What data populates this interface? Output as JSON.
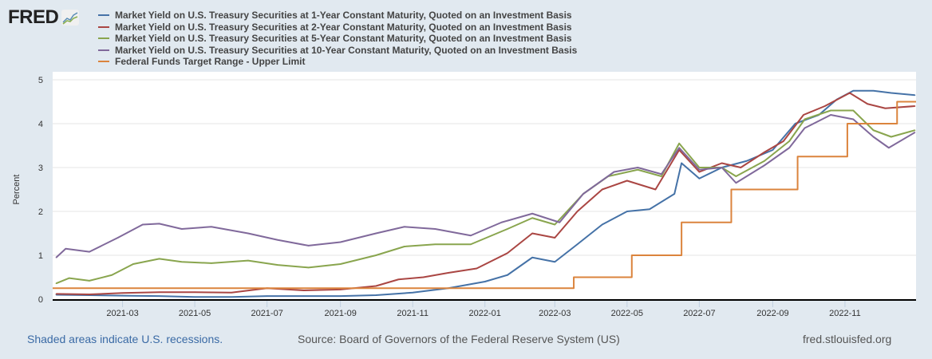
{
  "logo": {
    "text": "FRED"
  },
  "footer": {
    "recession_note": "Shaded areas indicate U.S. recessions.",
    "source": "Source: Board of Governors of the Federal Reserve System (US)",
    "site": "fred.stlouisfed.org"
  },
  "chart_data": {
    "type": "line",
    "title": "",
    "xlabel": "",
    "ylabel": "Percent",
    "ylim": [
      0,
      5
    ],
    "xlim": [
      "2021-01-01",
      "2022-12-31"
    ],
    "yticks": [
      "0",
      "1",
      "2",
      "3",
      "4",
      "5"
    ],
    "xticks": [
      "2021-03",
      "2021-05",
      "2021-07",
      "2021-09",
      "2021-11",
      "2022-01",
      "2022-03",
      "2022-05",
      "2022-07",
      "2022-09",
      "2022-11"
    ],
    "grid": true,
    "legend_position": "top",
    "series": [
      {
        "name": "Market Yield on U.S. Treasury Securities at 1-Year Constant Maturity, Quoted on an Investment Basis",
        "color": "#4572a7",
        "points": [
          [
            "2021-01-04",
            0.1
          ],
          [
            "2021-02-01",
            0.09
          ],
          [
            "2021-03-01",
            0.08
          ],
          [
            "2021-04-01",
            0.07
          ],
          [
            "2021-05-01",
            0.05
          ],
          [
            "2021-06-01",
            0.05
          ],
          [
            "2021-07-01",
            0.07
          ],
          [
            "2021-08-01",
            0.07
          ],
          [
            "2021-09-01",
            0.07
          ],
          [
            "2021-10-01",
            0.09
          ],
          [
            "2021-11-01",
            0.15
          ],
          [
            "2021-12-01",
            0.25
          ],
          [
            "2022-01-01",
            0.4
          ],
          [
            "2022-01-20",
            0.55
          ],
          [
            "2022-02-10",
            0.95
          ],
          [
            "2022-03-01",
            0.85
          ],
          [
            "2022-03-20",
            1.25
          ],
          [
            "2022-04-10",
            1.7
          ],
          [
            "2022-05-01",
            2.0
          ],
          [
            "2022-05-20",
            2.05
          ],
          [
            "2022-06-10",
            2.4
          ],
          [
            "2022-06-16",
            3.1
          ],
          [
            "2022-07-01",
            2.75
          ],
          [
            "2022-07-20",
            3.0
          ],
          [
            "2022-08-10",
            3.15
          ],
          [
            "2022-09-01",
            3.4
          ],
          [
            "2022-09-20",
            4.0
          ],
          [
            "2022-10-10",
            4.2
          ],
          [
            "2022-10-25",
            4.55
          ],
          [
            "2022-11-08",
            4.75
          ],
          [
            "2022-11-25",
            4.75
          ],
          [
            "2022-12-10",
            4.7
          ],
          [
            "2022-12-30",
            4.65
          ]
        ]
      },
      {
        "name": "Market Yield on U.S. Treasury Securities at 2-Year Constant Maturity, Quoted on an Investment Basis",
        "color": "#aa4643",
        "points": [
          [
            "2021-01-04",
            0.12
          ],
          [
            "2021-02-01",
            0.11
          ],
          [
            "2021-03-01",
            0.14
          ],
          [
            "2021-04-01",
            0.16
          ],
          [
            "2021-05-01",
            0.16
          ],
          [
            "2021-06-01",
            0.15
          ],
          [
            "2021-07-01",
            0.25
          ],
          [
            "2021-08-01",
            0.2
          ],
          [
            "2021-09-01",
            0.22
          ],
          [
            "2021-10-01",
            0.3
          ],
          [
            "2021-10-20",
            0.45
          ],
          [
            "2021-11-10",
            0.5
          ],
          [
            "2021-12-01",
            0.6
          ],
          [
            "2021-12-25",
            0.7
          ],
          [
            "2022-01-20",
            1.05
          ],
          [
            "2022-02-10",
            1.5
          ],
          [
            "2022-03-01",
            1.4
          ],
          [
            "2022-03-20",
            2.0
          ],
          [
            "2022-04-10",
            2.5
          ],
          [
            "2022-05-01",
            2.7
          ],
          [
            "2022-05-25",
            2.5
          ],
          [
            "2022-06-14",
            3.4
          ],
          [
            "2022-07-01",
            2.9
          ],
          [
            "2022-07-20",
            3.1
          ],
          [
            "2022-08-05",
            3.0
          ],
          [
            "2022-08-25",
            3.35
          ],
          [
            "2022-09-10",
            3.6
          ],
          [
            "2022-09-27",
            4.2
          ],
          [
            "2022-10-15",
            4.4
          ],
          [
            "2022-11-05",
            4.7
          ],
          [
            "2022-11-20",
            4.45
          ],
          [
            "2022-12-05",
            4.35
          ],
          [
            "2022-12-30",
            4.4
          ]
        ]
      },
      {
        "name": "Market Yield on U.S. Treasury Securities at 5-Year Constant Maturity, Quoted on an Investment Basis",
        "color": "#89a54e",
        "points": [
          [
            "2021-01-04",
            0.36
          ],
          [
            "2021-01-15",
            0.48
          ],
          [
            "2021-02-01",
            0.42
          ],
          [
            "2021-02-20",
            0.55
          ],
          [
            "2021-03-10",
            0.8
          ],
          [
            "2021-04-01",
            0.92
          ],
          [
            "2021-04-20",
            0.85
          ],
          [
            "2021-05-15",
            0.82
          ],
          [
            "2021-06-15",
            0.88
          ],
          [
            "2021-07-10",
            0.78
          ],
          [
            "2021-08-05",
            0.72
          ],
          [
            "2021-09-01",
            0.8
          ],
          [
            "2021-10-01",
            1.0
          ],
          [
            "2021-10-25",
            1.2
          ],
          [
            "2021-11-20",
            1.25
          ],
          [
            "2021-12-20",
            1.25
          ],
          [
            "2022-01-20",
            1.6
          ],
          [
            "2022-02-10",
            1.85
          ],
          [
            "2022-03-01",
            1.7
          ],
          [
            "2022-03-25",
            2.4
          ],
          [
            "2022-04-15",
            2.8
          ],
          [
            "2022-05-10",
            2.95
          ],
          [
            "2022-05-30",
            2.8
          ],
          [
            "2022-06-14",
            3.55
          ],
          [
            "2022-07-01",
            3.0
          ],
          [
            "2022-07-20",
            3.0
          ],
          [
            "2022-08-01",
            2.8
          ],
          [
            "2022-08-25",
            3.15
          ],
          [
            "2022-09-15",
            3.6
          ],
          [
            "2022-09-28",
            4.1
          ],
          [
            "2022-10-20",
            4.3
          ],
          [
            "2022-11-08",
            4.3
          ],
          [
            "2022-11-25",
            3.85
          ],
          [
            "2022-12-10",
            3.7
          ],
          [
            "2022-12-30",
            3.85
          ]
        ]
      },
      {
        "name": "Market Yield on U.S. Treasury Securities at 10-Year Constant Maturity, Quoted on an Investment Basis",
        "color": "#80699b",
        "points": [
          [
            "2021-01-04",
            0.95
          ],
          [
            "2021-01-12",
            1.15
          ],
          [
            "2021-02-01",
            1.08
          ],
          [
            "2021-02-25",
            1.4
          ],
          [
            "2021-03-18",
            1.7
          ],
          [
            "2021-04-01",
            1.72
          ],
          [
            "2021-04-20",
            1.6
          ],
          [
            "2021-05-15",
            1.65
          ],
          [
            "2021-06-15",
            1.5
          ],
          [
            "2021-07-10",
            1.35
          ],
          [
            "2021-08-05",
            1.22
          ],
          [
            "2021-09-01",
            1.3
          ],
          [
            "2021-10-01",
            1.5
          ],
          [
            "2021-10-25",
            1.65
          ],
          [
            "2021-11-20",
            1.6
          ],
          [
            "2021-12-20",
            1.45
          ],
          [
            "2022-01-15",
            1.75
          ],
          [
            "2022-02-10",
            1.95
          ],
          [
            "2022-03-05",
            1.75
          ],
          [
            "2022-03-25",
            2.4
          ],
          [
            "2022-04-20",
            2.9
          ],
          [
            "2022-05-10",
            3.0
          ],
          [
            "2022-05-30",
            2.85
          ],
          [
            "2022-06-14",
            3.45
          ],
          [
            "2022-07-01",
            2.95
          ],
          [
            "2022-07-20",
            3.0
          ],
          [
            "2022-08-01",
            2.65
          ],
          [
            "2022-08-25",
            3.05
          ],
          [
            "2022-09-15",
            3.45
          ],
          [
            "2022-09-28",
            3.9
          ],
          [
            "2022-10-20",
            4.2
          ],
          [
            "2022-11-08",
            4.1
          ],
          [
            "2022-11-25",
            3.7
          ],
          [
            "2022-12-08",
            3.45
          ],
          [
            "2022-12-30",
            3.8
          ]
        ]
      },
      {
        "name": "Federal Funds Target Range - Upper Limit",
        "color": "#db843d",
        "step": true,
        "points": [
          [
            "2021-01-01",
            0.25
          ],
          [
            "2022-03-17",
            0.5
          ],
          [
            "2022-05-05",
            1.0
          ],
          [
            "2022-06-16",
            1.75
          ],
          [
            "2022-07-28",
            2.5
          ],
          [
            "2022-09-22",
            3.25
          ],
          [
            "2022-11-03",
            4.0
          ],
          [
            "2022-12-15",
            4.5
          ],
          [
            "2022-12-31",
            4.5
          ]
        ]
      }
    ]
  }
}
